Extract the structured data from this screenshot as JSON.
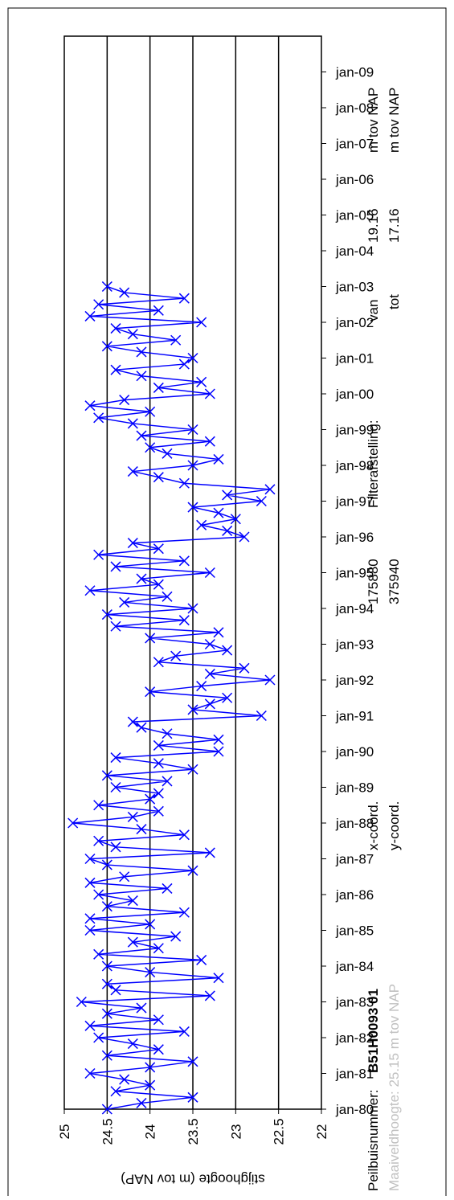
{
  "chart_data": {
    "type": "line",
    "y_label": "stijghoogte (m tov NAP)",
    "info": {
      "peilbuis_label": "Peilbuisnummer:",
      "peilbuis": "B51H0093 01",
      "maaiveld": "Maaiveldhoogte: 25.15 m tov NAP",
      "xcoord_label": "x-coord.",
      "xcoord": "175880",
      "ycoord_label": "y-coord.",
      "ycoord": "375940",
      "filter_label": "Filterafstelling:",
      "van_label": "van",
      "van": "19.16",
      "van_unit": "m tov NAP",
      "tot_label": "tot",
      "tot": "17.16",
      "tot_unit": "m tov NAP"
    },
    "x": [
      1980,
      1980.17,
      1980.33,
      1980.5,
      1980.67,
      1980.83,
      1981,
      1981.17,
      1981.33,
      1981.5,
      1981.67,
      1981.83,
      1982,
      1982.17,
      1982.33,
      1982.5,
      1982.67,
      1982.83,
      1983,
      1983.17,
      1983.33,
      1983.5,
      1983.67,
      1983.83,
      1984,
      1984.17,
      1984.33,
      1984.5,
      1984.67,
      1984.83,
      1985,
      1985.17,
      1985.33,
      1985.5,
      1985.67,
      1985.83,
      1986,
      1986.17,
      1986.33,
      1986.5,
      1986.67,
      1986.83,
      1987,
      1987.17,
      1987.33,
      1987.5,
      1987.67,
      1987.83,
      1988,
      1988.17,
      1988.33,
      1988.5,
      1988.67,
      1988.83,
      1989,
      1989.17,
      1989.33,
      1989.5,
      1989.67,
      1989.83,
      1990,
      1990.17,
      1990.33,
      1990.5,
      1990.67,
      1990.83,
      1991,
      1991.17,
      1991.33,
      1991.5,
      1991.67,
      1991.83,
      1992,
      1992.17,
      1992.33,
      1992.5,
      1992.67,
      1992.83,
      1993,
      1993.17,
      1993.33,
      1993.5,
      1993.67,
      1993.83,
      1994,
      1994.17,
      1994.33,
      1994.5,
      1994.67,
      1994.83,
      1995,
      1995.17,
      1995.33,
      1995.5,
      1995.67,
      1995.83,
      1996,
      1996.17,
      1996.33,
      1996.5,
      1996.67,
      1996.83,
      1997,
      1997.17,
      1997.33,
      1997.5,
      1997.67,
      1997.83,
      1998,
      1998.17,
      1998.33,
      1998.5,
      1998.67,
      1998.83,
      1999,
      1999.17,
      1999.33,
      1999.5,
      1999.67,
      1999.83,
      2000,
      2000.17,
      2000.33,
      2000.5,
      2000.67,
      2000.83,
      2001,
      2001.17,
      2001.33,
      2001.5,
      2001.67,
      2001.83,
      2002,
      2002.17,
      2002.33,
      2002.5,
      2002.67,
      2002.83,
      2003
    ],
    "series": [
      {
        "name": "B51H0093 01",
        "color": "#0000ff",
        "values": [
          24.5,
          24.1,
          23.5,
          24.4,
          24.0,
          24.3,
          24.7,
          24.0,
          23.5,
          24.5,
          23.9,
          24.2,
          24.6,
          23.6,
          24.7,
          23.9,
          24.5,
          24.1,
          24.8,
          23.3,
          24.4,
          24.5,
          23.2,
          24.0,
          24.5,
          23.4,
          24.6,
          23.9,
          24.2,
          23.7,
          24.7,
          24.0,
          24.7,
          23.6,
          24.5,
          24.2,
          24.6,
          23.8,
          24.7,
          24.3,
          23.5,
          24.5,
          24.7,
          23.3,
          24.4,
          24.6,
          23.6,
          24.1,
          24.9,
          24.2,
          23.9,
          24.6,
          24.0,
          23.9,
          24.4,
          23.8,
          24.5,
          23.5,
          23.9,
          24.4,
          23.2,
          23.9,
          23.2,
          23.8,
          24.1,
          24.2,
          22.7,
          23.5,
          23.3,
          23.1,
          24.0,
          23.4,
          22.6,
          23.3,
          22.9,
          23.9,
          23.7,
          23.1,
          23.3,
          24.0,
          23.2,
          24.4,
          23.6,
          24.5,
          23.5,
          24.3,
          23.8,
          24.7,
          23.9,
          24.1,
          23.3,
          24.4,
          23.6,
          24.6,
          23.9,
          24.2,
          22.9,
          23.1,
          23.4,
          23.0,
          23.2,
          23.5,
          22.7,
          23.1,
          22.6,
          23.6,
          23.9,
          24.2,
          23.5,
          23.2,
          23.8,
          24.0,
          23.3,
          24.1,
          23.5,
          24.2,
          24.6,
          24.0,
          24.7,
          24.3,
          23.3,
          23.9,
          23.4,
          24.1,
          24.4,
          23.6,
          23.5,
          24.1,
          24.5,
          23.7,
          24.2,
          24.4,
          23.4,
          24.7,
          23.9,
          24.6,
          23.6,
          24.3,
          24.5
        ]
      }
    ],
    "xlim": [
      1980,
      2010
    ],
    "xticks": [
      {
        "value": 1980,
        "label": "jan-80"
      },
      {
        "value": 1981,
        "label": "jan-81"
      },
      {
        "value": 1982,
        "label": "jan-82"
      },
      {
        "value": 1983,
        "label": "jan-83"
      },
      {
        "value": 1984,
        "label": "jan-84"
      },
      {
        "value": 1985,
        "label": "jan-85"
      },
      {
        "value": 1986,
        "label": "jan-86"
      },
      {
        "value": 1987,
        "label": "jan-87"
      },
      {
        "value": 1988,
        "label": "jan-88"
      },
      {
        "value": 1989,
        "label": "jan-89"
      },
      {
        "value": 1990,
        "label": "jan-90"
      },
      {
        "value": 1991,
        "label": "jan-91"
      },
      {
        "value": 1992,
        "label": "jan-92"
      },
      {
        "value": 1993,
        "label": "jan-93"
      },
      {
        "value": 1994,
        "label": "jan-94"
      },
      {
        "value": 1995,
        "label": "jan-95"
      },
      {
        "value": 1996,
        "label": "jan-96"
      },
      {
        "value": 1997,
        "label": "jan-97"
      },
      {
        "value": 1998,
        "label": "jan-98"
      },
      {
        "value": 1999,
        "label": "jan-99"
      },
      {
        "value": 2000,
        "label": "jan-00"
      },
      {
        "value": 2001,
        "label": "jan-01"
      },
      {
        "value": 2002,
        "label": "jan-02"
      },
      {
        "value": 2003,
        "label": "jan-03"
      },
      {
        "value": 2004,
        "label": "jan-04"
      },
      {
        "value": 2005,
        "label": "jan-05"
      },
      {
        "value": 2006,
        "label": "jan-06"
      },
      {
        "value": 2007,
        "label": "jan-07"
      },
      {
        "value": 2008,
        "label": "jan-08"
      },
      {
        "value": 2009,
        "label": "jan-09"
      }
    ],
    "ylim": [
      25,
      22
    ],
    "yticks": [
      25,
      24.5,
      24,
      23.5,
      23,
      22.5,
      22
    ],
    "grid": true
  }
}
